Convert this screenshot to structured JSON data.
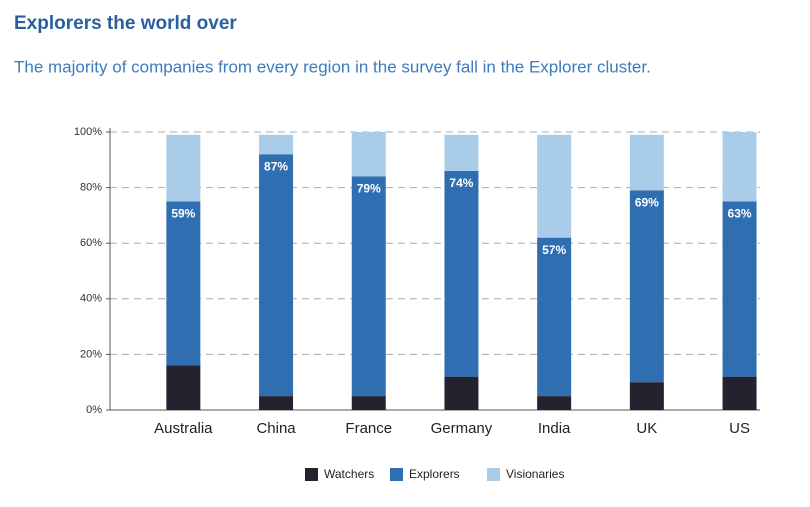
{
  "chart_data": {
    "type": "stacked_bar",
    "title": "Explorers the world over",
    "subtitle": "The majority of companies from every region in the survey fall in the Explorer cluster.",
    "categories": [
      "Australia",
      "China",
      "France",
      "Germany",
      "India",
      "UK",
      "US"
    ],
    "series": [
      {
        "name": "Watchers",
        "color": "#23222e",
        "values": [
          16,
          5,
          5,
          12,
          5,
          10,
          12
        ]
      },
      {
        "name": "Explorers",
        "color": "#2f6eb0",
        "values": [
          59,
          87,
          79,
          74,
          57,
          69,
          63
        ],
        "value_labels": [
          "59%",
          "87%",
          "79%",
          "74%",
          "57%",
          "69%",
          "63%"
        ]
      },
      {
        "name": "Visionaries",
        "color": "#a9cce8",
        "values": [
          24,
          7,
          16,
          13,
          37,
          20,
          25
        ]
      }
    ],
    "ylim": [
      0,
      100
    ],
    "yticks": [
      {
        "value": 0,
        "label": "0%"
      },
      {
        "value": 20,
        "label": "20%"
      },
      {
        "value": 40,
        "label": "40%"
      },
      {
        "value": 60,
        "label": "60%"
      },
      {
        "value": 80,
        "label": "80%"
      },
      {
        "value": 100,
        "label": "100%"
      }
    ],
    "grid": true
  }
}
